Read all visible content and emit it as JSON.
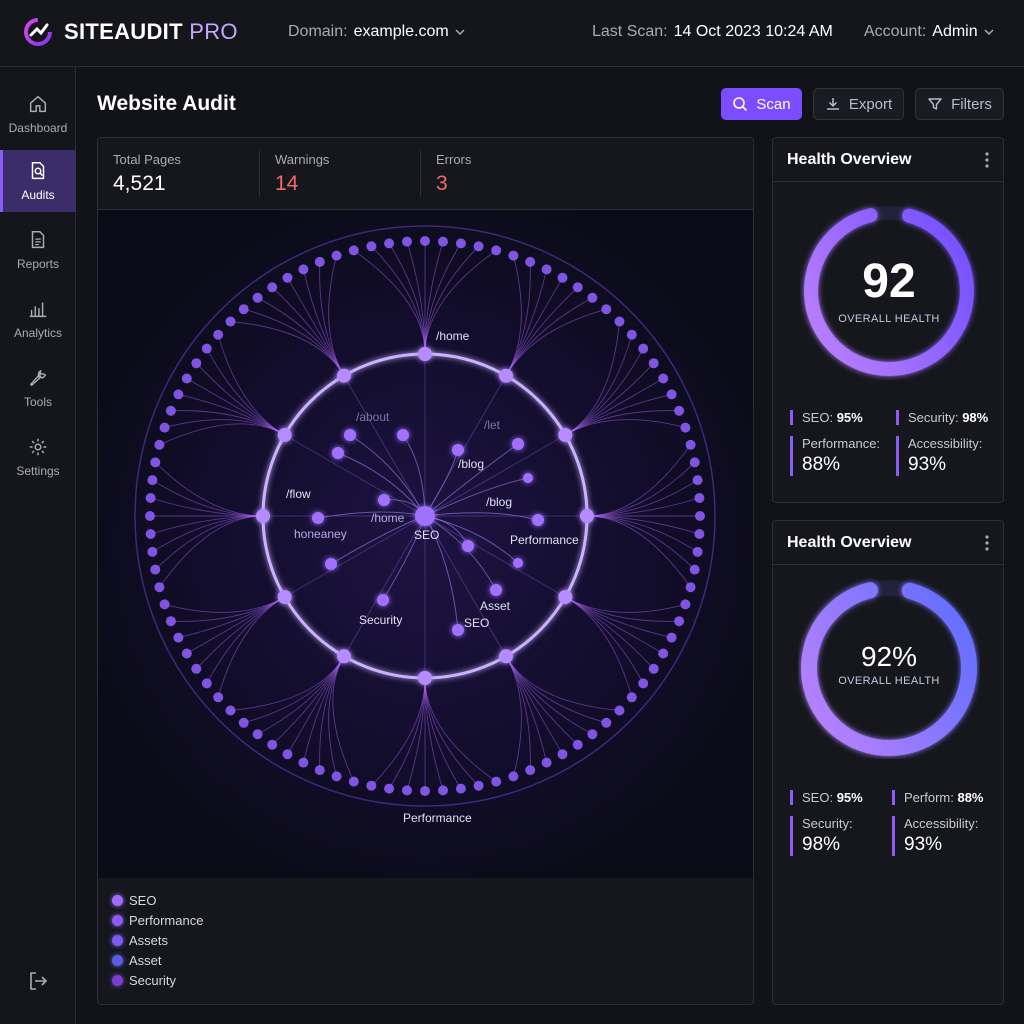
{
  "brand": {
    "name_part1": "SITEAUDIT",
    "name_part2": " PRO"
  },
  "topbar": {
    "domain_label": "Domain:",
    "domain_value": "example.com",
    "last_scan_label": "Last Scan:",
    "last_scan_value": "14 Oct 2023 10:24 AM",
    "account_label": "Account:",
    "account_value": "Admin"
  },
  "sidebar": {
    "items": [
      {
        "label": "Dashboard",
        "icon": "home-icon"
      },
      {
        "label": "Audits",
        "icon": "document-search-icon",
        "active": true
      },
      {
        "label": "Reports",
        "icon": "report-icon"
      },
      {
        "label": "Analytics",
        "icon": "bar-chart-icon"
      },
      {
        "label": "Tools",
        "icon": "wrench-icon"
      },
      {
        "label": "Settings",
        "icon": "gear-icon"
      }
    ],
    "logout_icon": "logout-icon"
  },
  "header": {
    "title": "Website Audit",
    "scan_label": "Scan",
    "export_label": "Export",
    "filters_label": "Filters"
  },
  "stats": {
    "total_pages_label": "Total Pages",
    "total_pages_value": "4,521",
    "warnings_label": "Warnings",
    "warnings_value": "14",
    "errors_label": "Errors",
    "errors_value": "3"
  },
  "viz": {
    "node_labels": [
      "/home",
      "/about",
      "/let",
      "/blog",
      "/flow",
      "/home",
      "/blog",
      "honeaney",
      "SEO",
      "Performance",
      "Asset",
      "Security",
      "SEO",
      "Performance"
    ]
  },
  "legend": [
    {
      "label": "SEO",
      "color": "#9f6bff"
    },
    {
      "label": "Performance",
      "color": "#8b5cf6"
    },
    {
      "label": "Assets",
      "color": "#7c5cf0"
    },
    {
      "label": "Asset",
      "color": "#5b5ce6"
    },
    {
      "label": "Security",
      "color": "#7a3fd1"
    }
  ],
  "health1": {
    "title": "Health Overview",
    "value": "92",
    "label": "OVERALL HEALTH",
    "progress": 0.92,
    "m1_label": "SEO:",
    "m1_value": "95%",
    "m2_label": "Security:",
    "m2_value": "98%",
    "m3_label": "Performance:",
    "m3_value": "88%",
    "m4_label": "Accessibility:",
    "m4_value": "93%"
  },
  "health2": {
    "title": "Health Overview",
    "value": "92%",
    "label": "OVERALL HEALTH",
    "progress": 0.92,
    "m1_label": "SEO:",
    "m1_value": "95%",
    "m2_label": "Perform:",
    "m2_value": "88%",
    "m3_label": "Security:",
    "m3_value": "98%",
    "m4_label": "Accessibility:",
    "m4_value": "93%"
  },
  "colors": {
    "accent": "#7c4dff",
    "warning": "#ef6a6a",
    "error": "#ef6a6a",
    "active_nav": "#3a2d6a"
  }
}
